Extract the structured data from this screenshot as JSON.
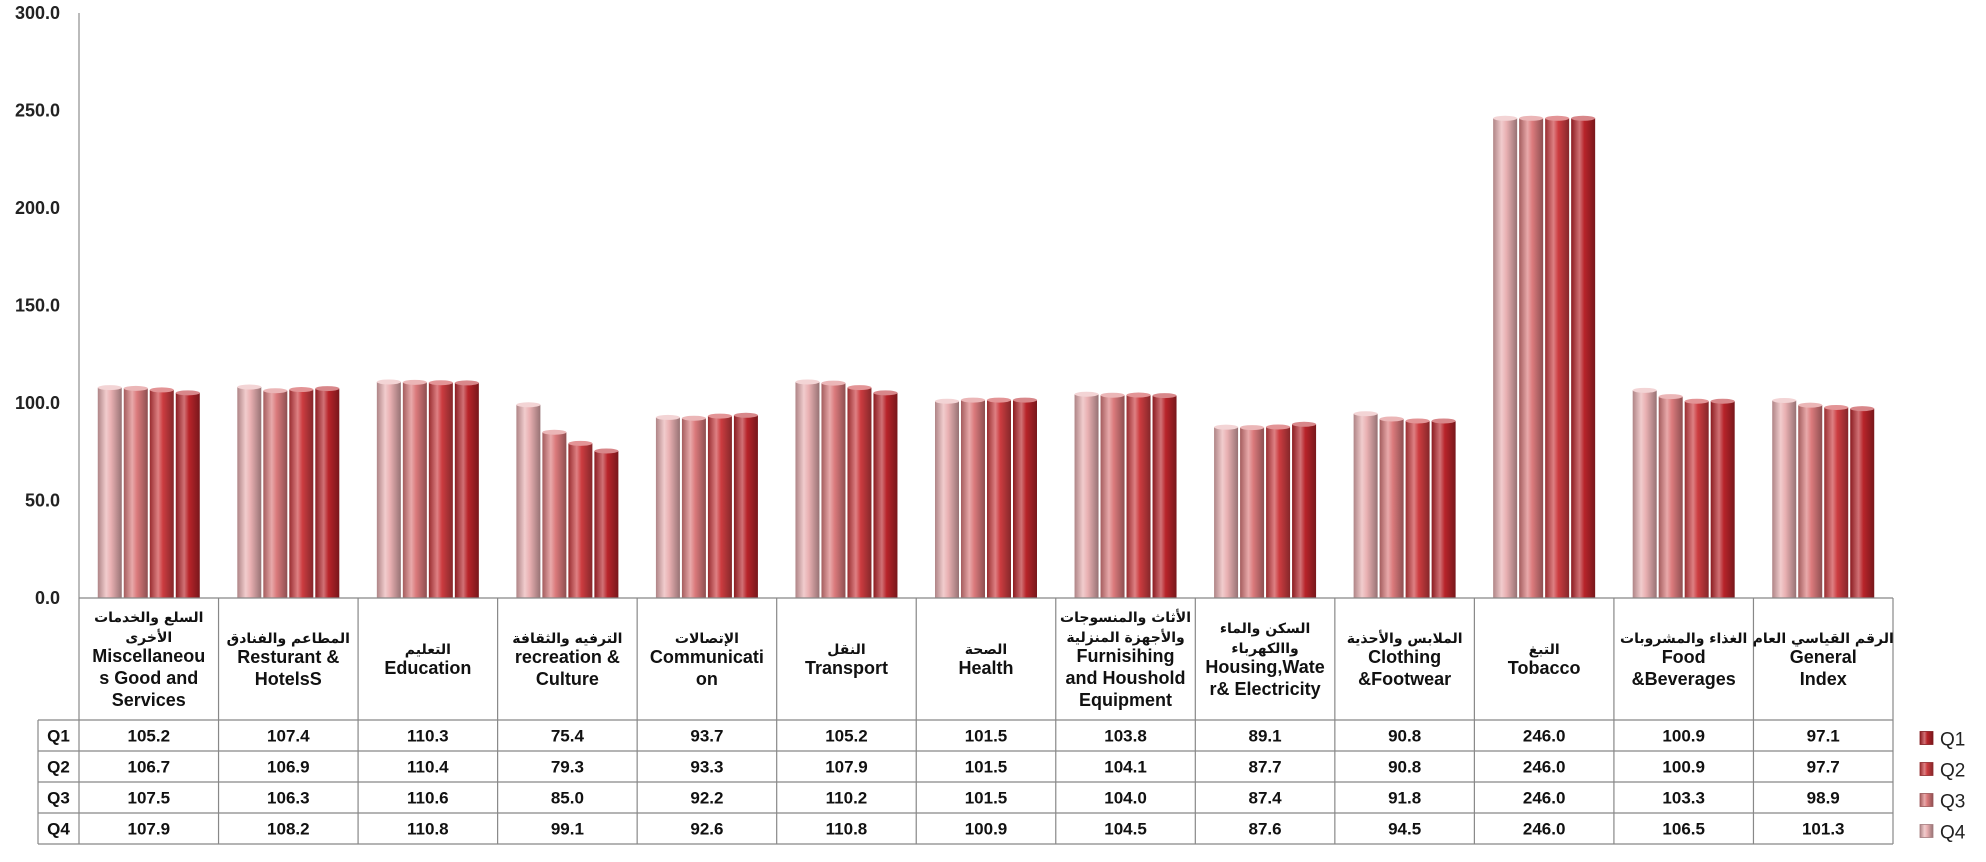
{
  "chart_data": {
    "type": "bar",
    "title": "",
    "xlabel": "",
    "ylabel": "",
    "ylim": [
      0,
      300
    ],
    "yticks": [
      "0.0",
      "50.0",
      "100.0",
      "150.0",
      "200.0",
      "250.0",
      "300.0"
    ],
    "grid": false,
    "legend_position": "right",
    "categories": [
      {
        "ar": [
          "السلع والخدمات",
          "الأخرى"
        ],
        "en": [
          "Miscellaneou",
          "s Good and",
          "Services"
        ]
      },
      {
        "ar": [
          "المطاعم  والفنادق"
        ],
        "en": [
          "Resturant &",
          "HotelsS"
        ]
      },
      {
        "ar": [
          "التعليم"
        ],
        "en": [
          "Education"
        ]
      },
      {
        "ar": [
          "الترفيه والثقافة"
        ],
        "en": [
          "recreation &",
          "Culture"
        ]
      },
      {
        "ar": [
          "الإتصالات"
        ],
        "en": [
          "Communicati",
          "on"
        ]
      },
      {
        "ar": [
          "النقل"
        ],
        "en": [
          "Transport"
        ]
      },
      {
        "ar": [
          "الصحة"
        ],
        "en": [
          "Health"
        ]
      },
      {
        "ar": [
          "الأثاث والمنسوجات",
          "والأجهزة المنزلية"
        ],
        "en": [
          "Furnisihing",
          "and Houshold",
          "Equipment"
        ]
      },
      {
        "ar": [
          "السكن والماء",
          "واالكهرباء"
        ],
        "en": [
          "Housing,Wate",
          "r& Electricity"
        ]
      },
      {
        "ar": [
          "الملابس والأحذية"
        ],
        "en": [
          "Clothing",
          "&Footwear"
        ]
      },
      {
        "ar": [
          "التبغ"
        ],
        "en": [
          "Tobacco"
        ]
      },
      {
        "ar": [
          "الغذاء والمشروبات"
        ],
        "en": [
          "Food",
          "&Beverages"
        ]
      },
      {
        "ar": [
          "الرقم القياسي العام"
        ],
        "en": [
          "General",
          "Index"
        ]
      }
    ],
    "series": [
      {
        "name": "Q1",
        "color": "#b8242a",
        "values": [
          "105.2",
          "107.4",
          "110.3",
          "75.4",
          "93.7",
          "105.2",
          "101.5",
          "103.8",
          "89.1",
          "90.8",
          "246.0",
          "100.9",
          "97.1"
        ]
      },
      {
        "name": "Q2",
        "color": "#cc3c40",
        "values": [
          "106.7",
          "106.9",
          "110.4",
          "79.3",
          "93.3",
          "107.9",
          "101.5",
          "104.1",
          "87.7",
          "90.8",
          "246.0",
          "100.9",
          "97.7"
        ]
      },
      {
        "name": "Q3",
        "color": "#db7a7c",
        "values": [
          "107.5",
          "106.3",
          "110.6",
          "85.0",
          "92.2",
          "110.2",
          "101.5",
          "104.0",
          "87.4",
          "91.8",
          "246.0",
          "103.3",
          "98.9"
        ]
      },
      {
        "name": "Q4",
        "color": "#e9b0b2",
        "values": [
          "107.9",
          "108.2",
          "110.8",
          "99.1",
          "92.6",
          "110.8",
          "100.9",
          "104.5",
          "87.6",
          "94.5",
          "246.0",
          "106.5",
          "101.3"
        ]
      }
    ]
  }
}
